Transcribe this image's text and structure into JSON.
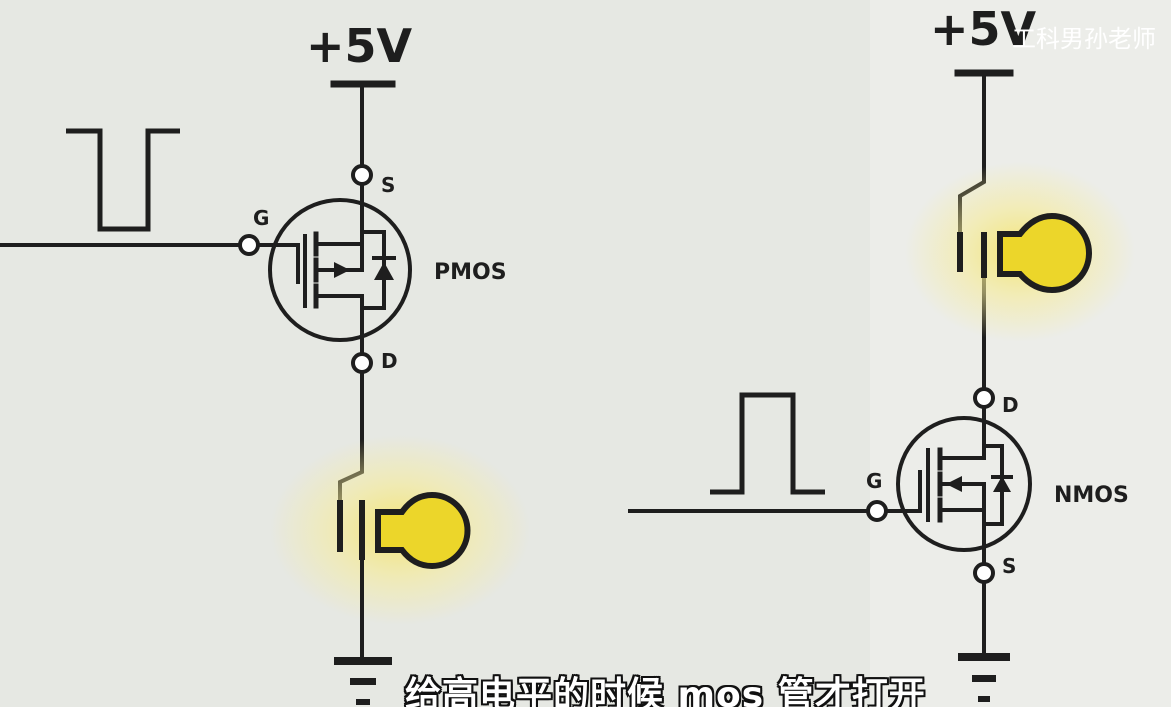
{
  "left_circuit": {
    "supply_label": "+5V",
    "gate_label": "G",
    "source_label": "S",
    "drain_label": "D",
    "transistor_label": "PMOS"
  },
  "right_circuit": {
    "supply_label": "+5V",
    "gate_label": "G",
    "source_label": "S",
    "drain_label": "D",
    "transistor_label": "NMOS"
  },
  "watermark": "工科男孙老师",
  "subtitle": "给高电平的时候 mos 管才打开",
  "colors": {
    "background": "#e6e8e3",
    "wire": "#1e1e1e",
    "bulb_fill": "#ecd62a",
    "bulb_glow": "#f6ec9a"
  }
}
